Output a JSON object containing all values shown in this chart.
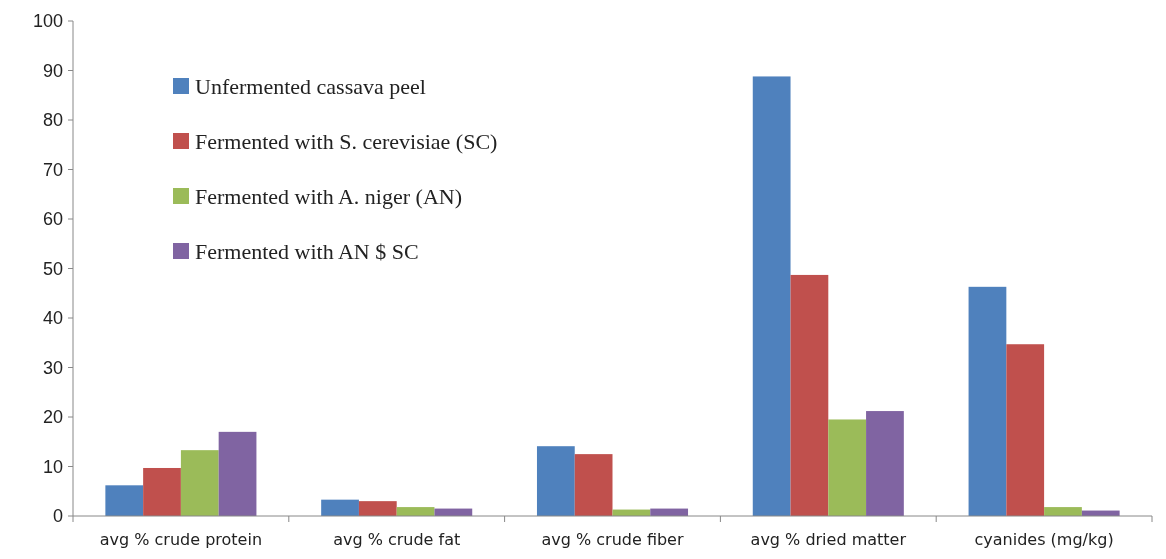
{
  "chart_data": {
    "type": "bar",
    "categories": [
      "avg % crude protein",
      "avg % crude fat",
      "avg % crude fiber",
      "avg % dried matter",
      "cyanides (mg/kg)"
    ],
    "series": [
      {
        "name": "Unfermented cassava peel",
        "color": "#4f81bd",
        "values": [
          6.2,
          3.3,
          14.1,
          88.8,
          46.3
        ]
      },
      {
        "name": "Fermented with S. cerevisiae (SC)",
        "color": "#c0504d",
        "values": [
          9.7,
          3,
          12.5,
          48.7,
          34.7
        ]
      },
      {
        "name": "Fermented with A. niger (AN)",
        "color": "#9bbb59",
        "values": [
          13.3,
          1.8,
          1.3,
          19.5,
          1.8
        ]
      },
      {
        "name": "Fermented with AN $ SC",
        "color": "#8064a2",
        "values": [
          17,
          1.5,
          1.5,
          21.2,
          1.1
        ]
      }
    ],
    "ylim": [
      0,
      100
    ],
    "yticks": [
      0,
      10,
      20,
      30,
      40,
      50,
      60,
      70,
      80,
      90,
      100
    ],
    "grid": false,
    "legend": "top left"
  }
}
